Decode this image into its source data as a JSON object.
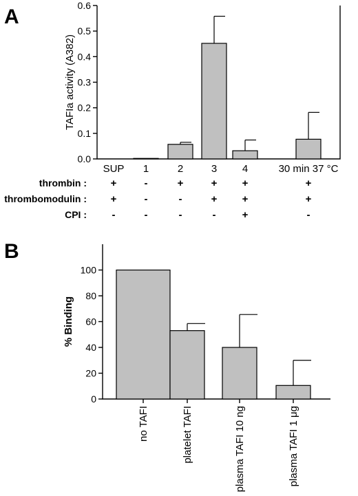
{
  "chart_data": [
    {
      "panel": "A",
      "type": "bar",
      "ylabel": "TAFIa activity (A382)",
      "ylim": [
        0,
        0.6
      ],
      "yticks": [
        "0.0",
        "0.1",
        "0.2",
        "0.3",
        "0.4",
        "0.5",
        "0.6"
      ],
      "categories": [
        "SUP",
        "1",
        "2",
        "3",
        "4",
        "30 min 37 °C"
      ],
      "values": [
        0.0,
        0.002,
        0.057,
        0.452,
        0.032,
        0.077
      ],
      "errors": [
        0.0,
        0.0,
        0.008,
        0.106,
        0.042,
        0.105
      ],
      "conditions": [
        {
          "label": "thrombin :",
          "signs": [
            "+",
            "-",
            "+",
            "+",
            "+",
            "+"
          ]
        },
        {
          "label": "thrombomodulin :",
          "signs": [
            "+",
            "-",
            "-",
            "+",
            "+",
            "+"
          ]
        },
        {
          "label": "CPI :",
          "signs": [
            "-",
            "-",
            "-",
            "-",
            "+",
            "-"
          ]
        }
      ]
    },
    {
      "panel": "B",
      "type": "bar",
      "ylabel": "% Binding",
      "ylim": [
        0,
        120
      ],
      "yticks": [
        "0",
        "20",
        "40",
        "60",
        "80",
        "100"
      ],
      "categories": [
        "no TAFI",
        "platelet TAFI",
        "plasma TAFI 10 ng",
        "plasma TAFI 1 μg"
      ],
      "values": [
        100,
        53,
        40,
        10.5
      ],
      "errors": [
        0,
        5.5,
        25.5,
        19.5
      ]
    }
  ]
}
